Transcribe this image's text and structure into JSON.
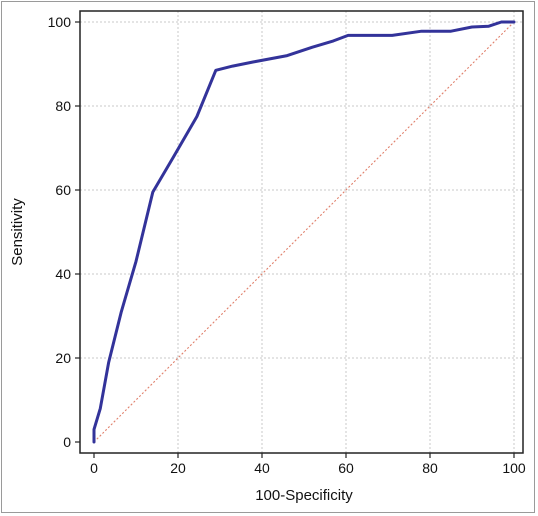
{
  "chart_data": {
    "type": "line",
    "title": "",
    "xlabel": "100-Specificity",
    "ylabel": "Sensitivity",
    "xlim": [
      0,
      100
    ],
    "ylim": [
      0,
      100
    ],
    "x_ticks": [
      0,
      20,
      40,
      60,
      80,
      100
    ],
    "y_ticks": [
      0,
      20,
      40,
      60,
      80,
      100
    ],
    "grid": true,
    "series": [
      {
        "role": "roc-curve",
        "color": "#33339a",
        "style": "solid",
        "points": [
          [
            0,
            0
          ],
          [
            0,
            3
          ],
          [
            1.5,
            8
          ],
          [
            3.5,
            19
          ],
          [
            6.5,
            31
          ],
          [
            10,
            43
          ],
          [
            14,
            59.5
          ],
          [
            19,
            68
          ],
          [
            24.5,
            77.5
          ],
          [
            29,
            88.5
          ],
          [
            33,
            89.5
          ],
          [
            38,
            90.5
          ],
          [
            46,
            92
          ],
          [
            52,
            94
          ],
          [
            57,
            95.5
          ],
          [
            60.5,
            96.8
          ],
          [
            71,
            96.8
          ],
          [
            78,
            97.8
          ],
          [
            85,
            97.8
          ],
          [
            90,
            98.8
          ],
          [
            94,
            99
          ],
          [
            97,
            100
          ],
          [
            100,
            100
          ]
        ]
      },
      {
        "role": "reference-line",
        "color": "#e0806c",
        "style": "dotted",
        "points": [
          [
            0,
            0
          ],
          [
            100,
            100
          ]
        ]
      }
    ]
  }
}
